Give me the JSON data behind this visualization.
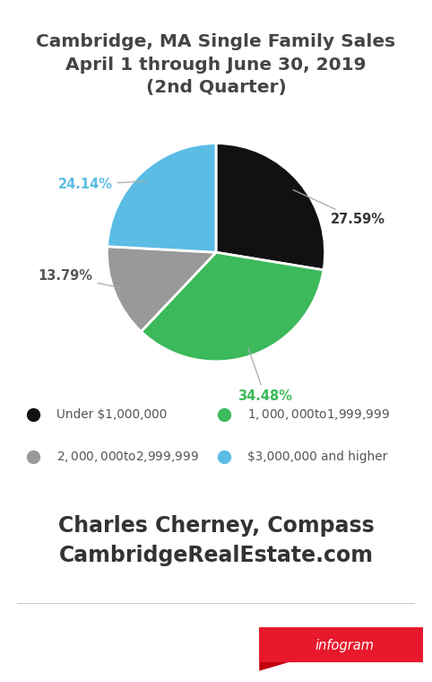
{
  "title_line1": "Cambridge, MA Single Family Sales",
  "title_line2": "April 1 through June 30, 2019",
  "title_line3": "(2nd Quarter)",
  "slices": [
    27.59,
    34.48,
    13.79,
    24.14
  ],
  "colors": [
    "#111111",
    "#3cb95a",
    "#999999",
    "#5bbce4"
  ],
  "labels": [
    "27.59%",
    "34.48%",
    "13.79%",
    "24.14%"
  ],
  "legend_labels": [
    "Under $1,000,000",
    "$1,000,000 to $1,999,999",
    "$2,000,000 to $2,999,999",
    "$3,000,000 and higher"
  ],
  "legend_colors": [
    "#111111",
    "#3cb95a",
    "#999999",
    "#5bbce4"
  ],
  "footer_line1": "Charles Cherney, Compass",
  "footer_line2": "CambridgeRealEstate.com",
  "background_color": "#ffffff",
  "title_color": "#444444",
  "label_colors": [
    "#333333",
    "#3cb95a",
    "#555555",
    "#5bbce4"
  ],
  "legend_text_color": "#555555",
  "footer_color": "#333333"
}
